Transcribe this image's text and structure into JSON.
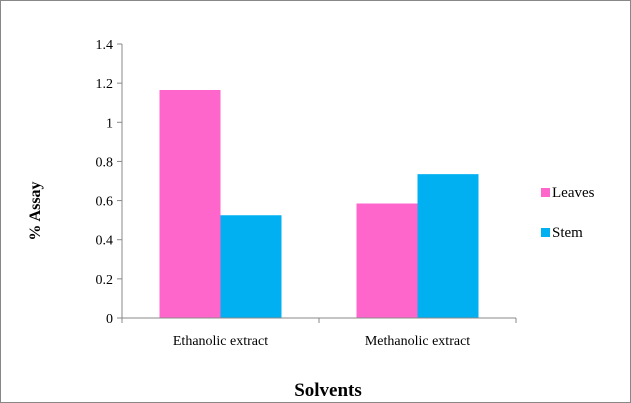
{
  "chart_data": {
    "type": "bar",
    "title": "",
    "xlabel": "Solvents",
    "ylabel": "% Assay",
    "categories": [
      "Ethanolic extract",
      "Methanolic extract"
    ],
    "series": [
      {
        "name": "Leaves",
        "values": [
          1.165,
          0.585
        ],
        "color": "#ff66cc"
      },
      {
        "name": "Stem",
        "values": [
          0.525,
          0.735
        ],
        "color": "#00b0f0"
      }
    ],
    "ylim": [
      0,
      1.4
    ],
    "yticks": [
      "0",
      "0.2",
      "0.4",
      "0.6",
      "0.8",
      "1",
      "1.2",
      "1.4"
    ],
    "grid": false,
    "legend_position": "right"
  }
}
